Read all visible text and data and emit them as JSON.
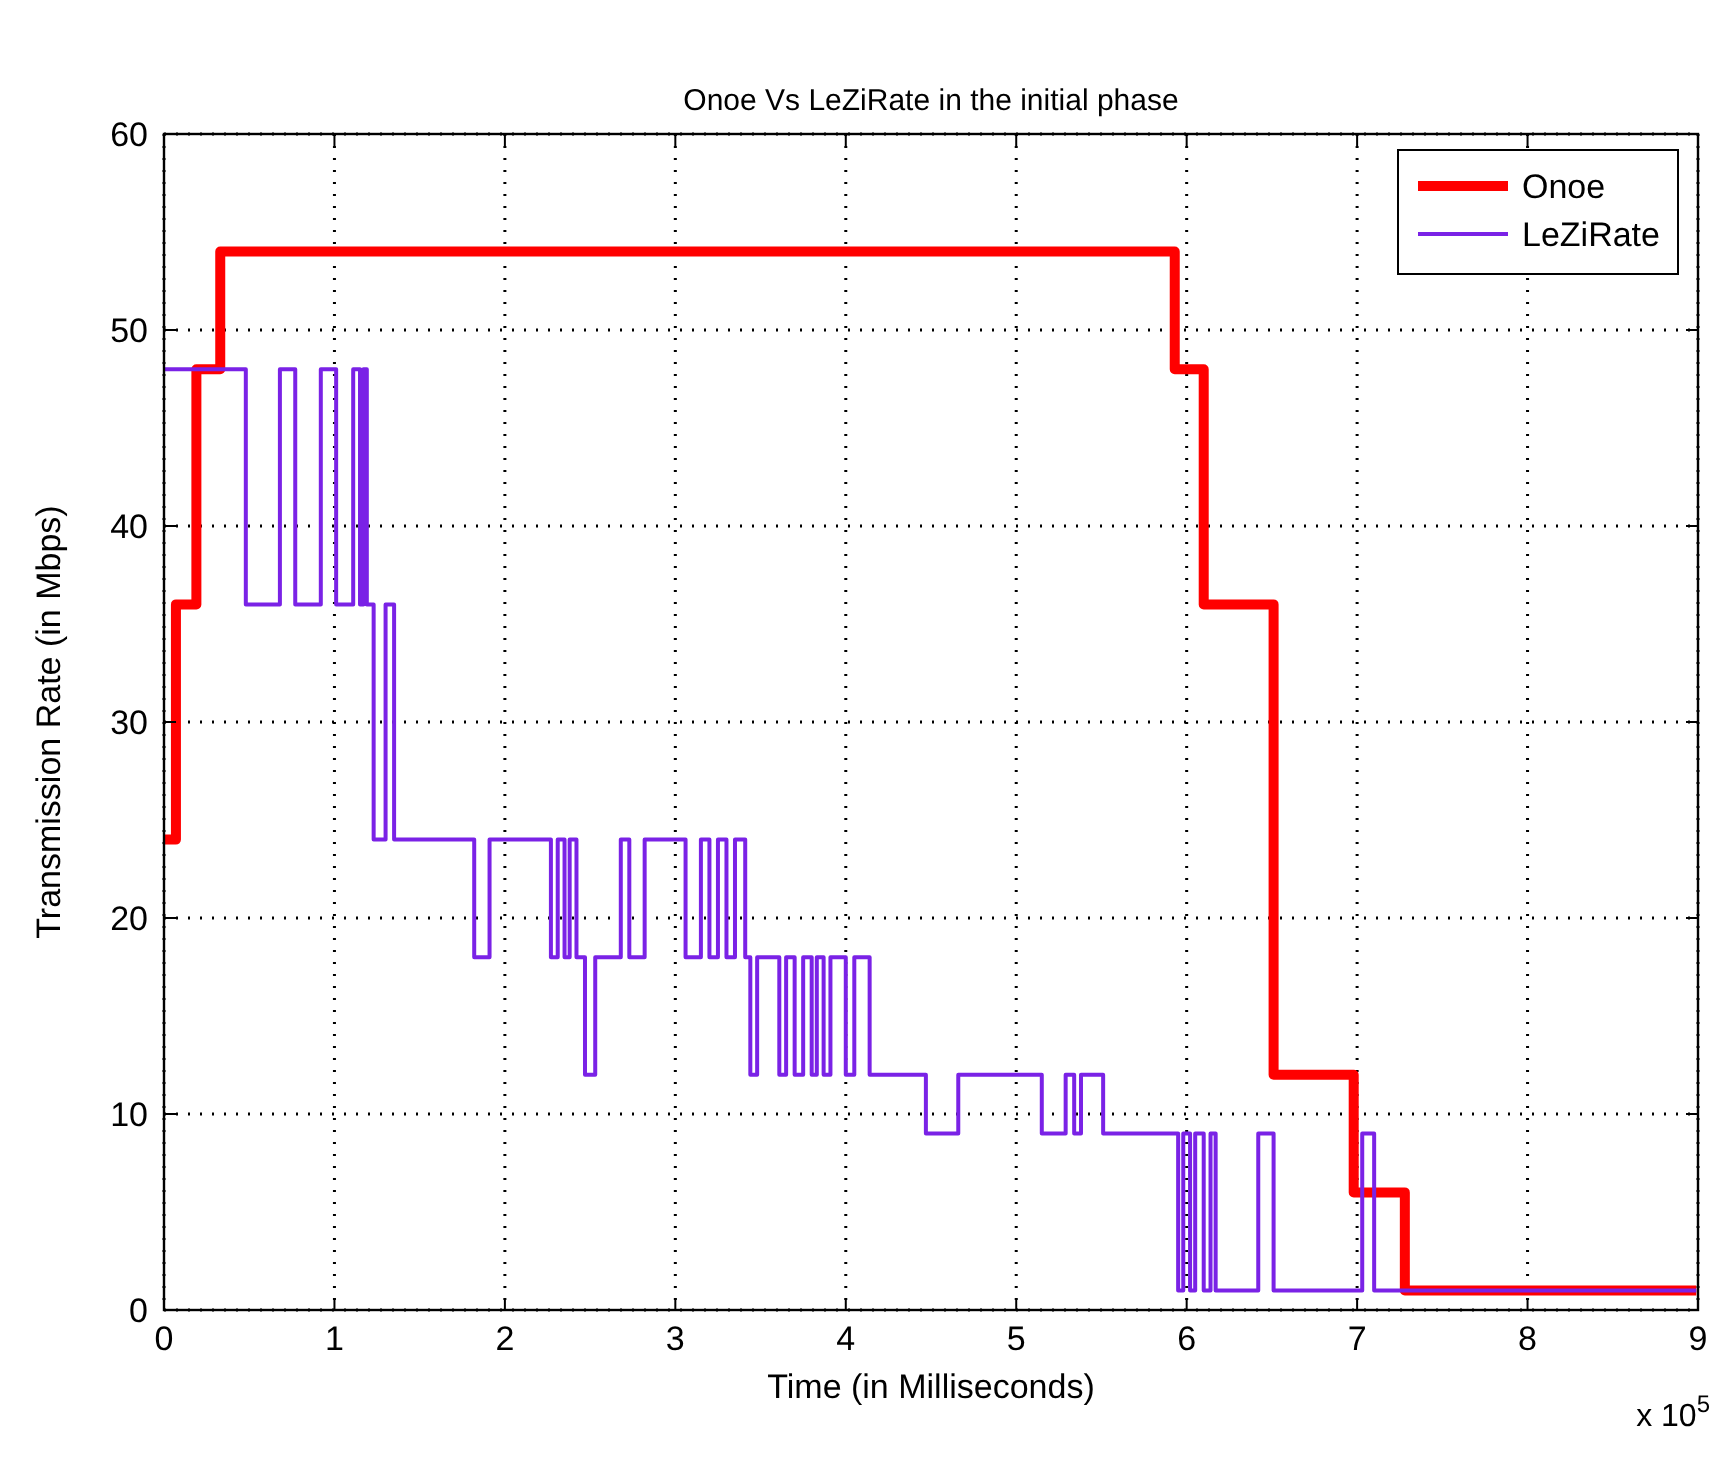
{
  "chart_data": {
    "type": "step",
    "title": "Onoe Vs LeZiRate in the initial phase",
    "xlabel": "Time (in Milliseconds)",
    "ylabel": "Transmission Rate (in Mbps)",
    "annotations": [
      "x 10$^{5}$"
    ],
    "xlim": [
      0,
      9
    ],
    "xticks": [
      0,
      1,
      2,
      3,
      4,
      5,
      6,
      7,
      8,
      9
    ],
    "ylim": [
      0,
      60
    ],
    "yticks": [
      0,
      10,
      20,
      30,
      40,
      50,
      60
    ],
    "grid": true,
    "legend": "top right",
    "series": [
      {
        "name": "Onoe",
        "color": "#ff0000",
        "x": [
          0,
          0.07,
          0.19,
          0.33,
          5.93,
          6.1,
          6.51,
          6.98,
          7.28,
          8.99
        ],
        "values": [
          24,
          36,
          48,
          54,
          48,
          36,
          12,
          6,
          1,
          1
        ]
      },
      {
        "name": "LeZiRate",
        "color": "#7a22e6",
        "x": [
          0,
          0.48,
          0.68,
          0.77,
          0.92,
          1.01,
          1.11,
          1.15,
          1.17,
          1.19,
          1.23,
          1.3,
          1.35,
          1.82,
          1.91,
          2.27,
          2.31,
          2.35,
          2.38,
          2.42,
          2.47,
          2.53,
          2.68,
          2.73,
          2.82,
          3.06,
          3.15,
          3.2,
          3.25,
          3.3,
          3.35,
          3.41,
          3.44,
          3.48,
          3.61,
          3.65,
          3.7,
          3.75,
          3.8,
          3.83,
          3.87,
          3.91,
          4.0,
          4.05,
          4.14,
          4.47,
          4.66,
          5.15,
          5.29,
          5.34,
          5.38,
          5.51,
          5.95,
          5.98,
          6.02,
          6.05,
          6.1,
          6.14,
          6.17,
          6.42,
          6.51,
          7.03,
          7.1,
          8.99
        ],
        "values": [
          48,
          36,
          48,
          36,
          48,
          36,
          48,
          36,
          48,
          36,
          24,
          36,
          24,
          18,
          24,
          18,
          24,
          18,
          24,
          18,
          12,
          18,
          24,
          18,
          24,
          18,
          24,
          18,
          24,
          18,
          24,
          18,
          12,
          18,
          12,
          18,
          12,
          18,
          12,
          18,
          12,
          18,
          12,
          18,
          12,
          9,
          12,
          9,
          12,
          9,
          12,
          9,
          1,
          9,
          1,
          9,
          1,
          9,
          1,
          9,
          1,
          9,
          1,
          1
        ]
      }
    ]
  }
}
